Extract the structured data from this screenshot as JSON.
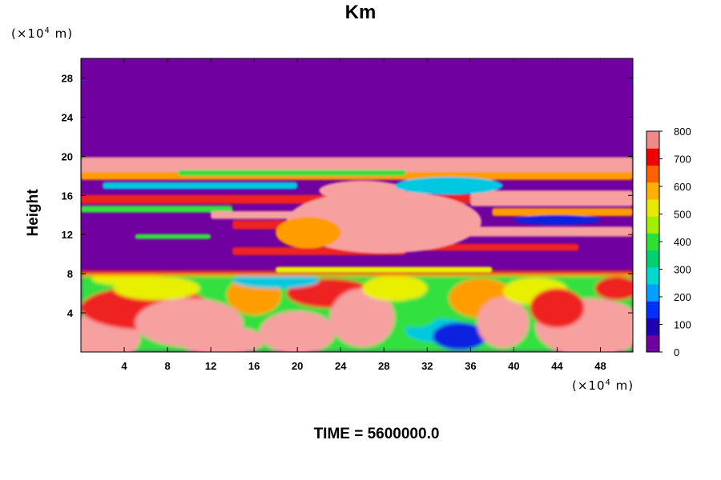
{
  "chart_data": {
    "type": "heatmap",
    "title": "Km",
    "ylabel": "Height",
    "x_unit": {
      "prefix": "(×10",
      "exp": "4",
      "suffix": " m)"
    },
    "y_unit": {
      "prefix": "(×10",
      "exp": "4",
      "suffix": " m)"
    },
    "xlim": [
      0,
      51
    ],
    "ylim": [
      0,
      30
    ],
    "x_ticks": [
      "4",
      "8",
      "12",
      "16",
      "20",
      "24",
      "28",
      "32",
      "36",
      "40",
      "44",
      "48"
    ],
    "y_ticks": [
      "4",
      "8",
      "12",
      "16",
      "20",
      "24",
      "28"
    ],
    "colorbar": {
      "range": [
        0,
        800
      ],
      "ticks": [
        "0",
        "100",
        "200",
        "300",
        "400",
        "500",
        "600",
        "700",
        "800"
      ],
      "stops": [
        "#7000a0",
        "#2000b0",
        "#0030ff",
        "#00a0ff",
        "#00d8d0",
        "#00d070",
        "#30e030",
        "#a0f000",
        "#e8e800",
        "#ffb000",
        "#ff6000",
        "#f00000",
        "#f08a8a"
      ]
    },
    "field_colors": {
      "background": "#7000a0",
      "high": "#f7a0a0",
      "red": "#ef2020",
      "orange": "#ff9c00",
      "yellow": "#e8f000",
      "green": "#30e040",
      "cyan": "#00c8e0",
      "blue": "#1020e0"
    }
  },
  "footer": {
    "time_label": "TIME = 5600000.0"
  }
}
